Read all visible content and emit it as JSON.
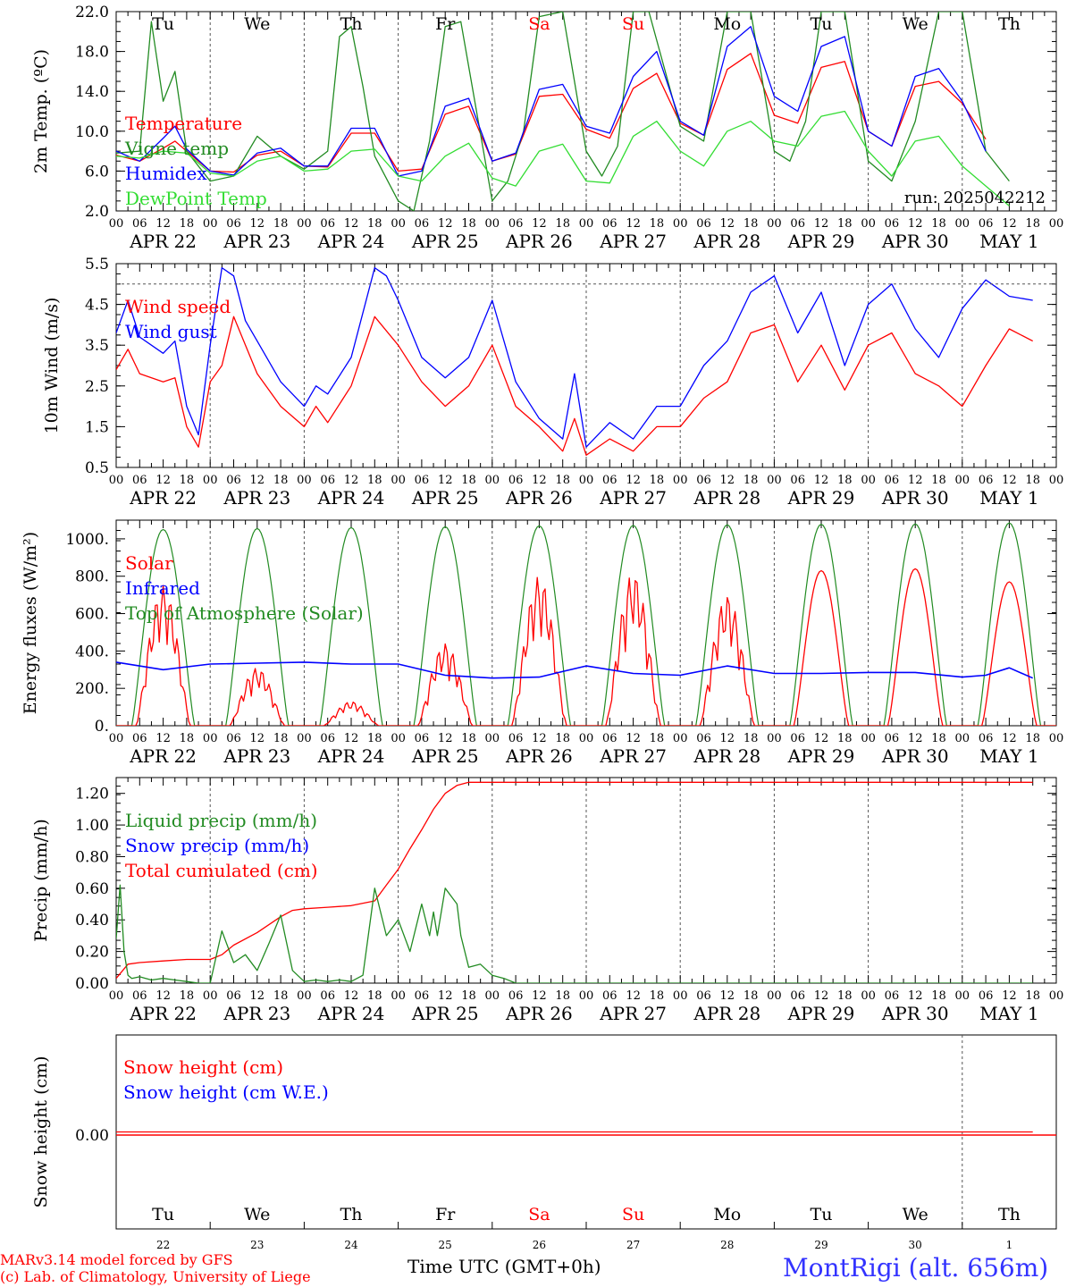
{
  "colors": {
    "temperature": "#ff0000",
    "vigne": "#228b22",
    "humidex": "#0000ff",
    "dewpoint": "#33dd33",
    "weekend": "#ff0000",
    "station": "#3333ff"
  },
  "days": [
    {
      "name": "Tu",
      "date": "APR 22",
      "num": "22",
      "weekend": false
    },
    {
      "name": "We",
      "date": "APR 23",
      "num": "23",
      "weekend": false
    },
    {
      "name": "Th",
      "date": "APR 24",
      "num": "24",
      "weekend": false
    },
    {
      "name": "Fr",
      "date": "APR 25",
      "num": "25",
      "weekend": false
    },
    {
      "name": "Sa",
      "date": "APR 26",
      "num": "26",
      "weekend": true
    },
    {
      "name": "Su",
      "date": "APR 27",
      "num": "27",
      "weekend": true
    },
    {
      "name": "Mo",
      "date": "APR 28",
      "num": "28",
      "weekend": false
    },
    {
      "name": "Tu",
      "date": "APR 29",
      "num": "29",
      "weekend": false
    },
    {
      "name": "We",
      "date": "APR 30",
      "num": "30",
      "weekend": false
    },
    {
      "name": "Th",
      "date": "MAY  1",
      "num": "1",
      "weekend": false
    }
  ],
  "hour_labels": [
    "00",
    "06",
    "12",
    "18"
  ],
  "footer": {
    "credit1": "MARv3.14 model forced by GFS",
    "credit2": "(c) Lab. of Climatology, University of Liege",
    "time_label": "Time UTC (GMT+0h)",
    "station": "MontRigi (alt. 656m)"
  },
  "chart_data": [
    {
      "id": "temp",
      "type": "line",
      "ylabel": "2m Temp. (ºC)",
      "ylim": [
        2,
        22
      ],
      "yticks": [
        "2.0",
        "6.0",
        "10.0",
        "14.0",
        "18.0",
        "22.0"
      ],
      "annotation": "run: 2025042212",
      "legend": [
        "Temperature",
        "Vigne temp",
        "Humidex",
        "DewPoint Temp"
      ],
      "series": [
        {
          "name": "Temperature",
          "color_key": "temperature",
          "x": [
            0,
            6,
            12,
            15,
            18,
            24,
            30,
            36,
            42,
            48,
            54,
            60,
            66,
            72,
            78,
            84,
            90,
            96,
            102,
            108,
            114,
            120,
            126,
            132,
            138,
            144,
            150,
            156,
            162,
            168,
            174,
            180,
            186,
            192,
            198,
            204,
            210,
            216,
            222,
            228,
            234
          ],
          "y": [
            7.6,
            7.0,
            8.3,
            9.0,
            8.0,
            6.0,
            5.9,
            7.6,
            8.0,
            6.5,
            6.4,
            9.8,
            9.8,
            6.0,
            6.2,
            11.7,
            12.5,
            7.0,
            7.7,
            13.5,
            13.7,
            10.2,
            9.3,
            14.3,
            15.8,
            10.8,
            9.6,
            16.2,
            17.8,
            11.6,
            10.8,
            16.4,
            17.0,
            10.0,
            8.5,
            14.5,
            15.0,
            12.8,
            9.2,
            null,
            null
          ]
        },
        {
          "name": "Vigne temp",
          "color_key": "vigne",
          "x": [
            0,
            6,
            9,
            12,
            15,
            18,
            24,
            30,
            36,
            42,
            48,
            54,
            57,
            60,
            63,
            66,
            72,
            76,
            80,
            84,
            88,
            96,
            100,
            104,
            108,
            114,
            120,
            124,
            128,
            132,
            136,
            144,
            150,
            156,
            158,
            162,
            168,
            172,
            176,
            180,
            186,
            192,
            198,
            204,
            210,
            216,
            222,
            228,
            234
          ],
          "y": [
            7.8,
            8.0,
            21.0,
            13.0,
            16.0,
            8.0,
            5.0,
            5.5,
            9.5,
            7.5,
            6.2,
            8.0,
            19.5,
            20.5,
            14.5,
            7.5,
            3.0,
            2.0,
            9.0,
            20.5,
            21.0,
            3.0,
            5.0,
            10.0,
            21.5,
            22.0,
            8.0,
            5.5,
            8.5,
            22.0,
            22.0,
            10.5,
            9.0,
            22.0,
            22.0,
            22.0,
            8.0,
            7.0,
            11.0,
            22.0,
            22.0,
            7.0,
            5.0,
            11.0,
            22.0,
            22.0,
            8.0,
            5.0,
            null
          ]
        },
        {
          "name": "Humidex",
          "color_key": "humidex",
          "x": [
            0,
            6,
            12,
            15,
            18,
            24,
            30,
            36,
            42,
            48,
            54,
            60,
            66,
            72,
            78,
            84,
            90,
            96,
            102,
            108,
            114,
            120,
            126,
            132,
            138,
            144,
            150,
            156,
            162,
            168,
            174,
            180,
            186,
            192,
            198,
            204,
            210,
            216,
            222,
            228,
            234
          ],
          "y": [
            8.0,
            7.0,
            9.3,
            10.5,
            8.2,
            6.0,
            5.6,
            7.8,
            8.3,
            6.5,
            6.5,
            10.3,
            10.3,
            5.5,
            6.0,
            12.5,
            13.3,
            7.0,
            7.8,
            14.2,
            14.7,
            10.5,
            9.8,
            15.5,
            18.0,
            11.0,
            9.6,
            18.5,
            20.5,
            13.5,
            12.0,
            18.5,
            19.5,
            10.0,
            8.5,
            15.5,
            16.3,
            13.0,
            8.0,
            null,
            null
          ]
        },
        {
          "name": "DewPoint Temp",
          "color_key": "dewpoint",
          "x": [
            0,
            6,
            12,
            18,
            24,
            30,
            36,
            42,
            48,
            54,
            60,
            66,
            72,
            78,
            84,
            90,
            96,
            102,
            108,
            114,
            120,
            126,
            132,
            138,
            144,
            150,
            156,
            162,
            168,
            174,
            180,
            186,
            192,
            198,
            204,
            210,
            216,
            222,
            228,
            234
          ],
          "y": [
            7.5,
            7.3,
            8.0,
            7.8,
            5.8,
            5.5,
            7.0,
            7.5,
            6.0,
            6.2,
            8.0,
            8.2,
            5.5,
            5.0,
            7.5,
            8.8,
            5.3,
            4.5,
            8.0,
            8.7,
            5.0,
            4.8,
            9.5,
            11.0,
            8.0,
            6.5,
            10.0,
            11.0,
            9.0,
            8.5,
            11.5,
            12.0,
            8.0,
            5.5,
            9.0,
            9.5,
            6.5,
            4.5,
            2.5,
            null
          ]
        }
      ]
    },
    {
      "id": "wind",
      "type": "line",
      "ylabel": "10m Wind (m/s)",
      "ylim": [
        0.5,
        5.5
      ],
      "yticks": [
        "0.5",
        "1.5",
        "2.5",
        "3.5",
        "4.5",
        "5.5"
      ],
      "reference_line": 5.0,
      "legend": [
        "Wind speed",
        "Wind gust"
      ],
      "series": [
        {
          "name": "Wind speed",
          "color_key": "temperature",
          "x": [
            0,
            3,
            6,
            12,
            15,
            18,
            21,
            24,
            27,
            30,
            36,
            42,
            48,
            51,
            54,
            60,
            66,
            72,
            78,
            84,
            90,
            96,
            102,
            108,
            114,
            117,
            120,
            126,
            132,
            138,
            144,
            150,
            156,
            162,
            168,
            174,
            180,
            186,
            192,
            198,
            204,
            210,
            216,
            222,
            228,
            234
          ],
          "y": [
            2.9,
            3.4,
            2.8,
            2.6,
            2.7,
            1.5,
            1.0,
            2.6,
            3.0,
            4.2,
            2.8,
            2.0,
            1.5,
            2.0,
            1.6,
            2.5,
            4.2,
            3.5,
            2.6,
            2.0,
            2.5,
            3.5,
            2.0,
            1.5,
            0.9,
            1.7,
            0.8,
            1.2,
            0.9,
            1.5,
            1.5,
            2.2,
            2.6,
            3.8,
            4.0,
            2.6,
            3.5,
            2.4,
            3.5,
            3.8,
            2.8,
            2.5,
            2.0,
            3.0,
            3.9,
            3.6
          ]
        },
        {
          "name": "Wind gust",
          "color_key": "humidex",
          "x": [
            0,
            3,
            6,
            12,
            15,
            18,
            21,
            24,
            27,
            30,
            33,
            36,
            42,
            48,
            51,
            54,
            60,
            66,
            69,
            72,
            78,
            84,
            90,
            96,
            102,
            108,
            114,
            117,
            120,
            126,
            132,
            138,
            144,
            150,
            156,
            162,
            168,
            174,
            180,
            186,
            192,
            198,
            204,
            210,
            216,
            222,
            228,
            234
          ],
          "y": [
            3.8,
            4.6,
            3.7,
            3.3,
            3.6,
            2.0,
            1.3,
            3.5,
            5.4,
            5.2,
            4.1,
            3.6,
            2.6,
            2.0,
            2.5,
            2.3,
            3.2,
            5.4,
            5.2,
            4.6,
            3.2,
            2.7,
            3.2,
            4.6,
            2.6,
            1.7,
            1.2,
            2.8,
            1.0,
            1.6,
            1.2,
            2.0,
            2.0,
            3.0,
            3.6,
            4.8,
            5.2,
            3.8,
            4.8,
            3.0,
            4.5,
            5.0,
            3.9,
            3.2,
            4.4,
            5.1,
            4.7,
            4.6
          ]
        }
      ]
    },
    {
      "id": "flux",
      "type": "line",
      "ylabel": "Energy fluxes (W/m²)",
      "ylim": [
        0,
        1100
      ],
      "yticks": [
        "0.",
        "200.",
        "400.",
        "600.",
        "800.",
        "1000."
      ],
      "legend": [
        "Solar",
        "Infrared",
        "Top of Atmosphere (Solar)"
      ],
      "toa_peaks": [
        1050,
        1055,
        1060,
        1065,
        1070,
        1072,
        1075,
        1078,
        1080,
        1085
      ],
      "solar_peaks": [
        750,
        310,
        130,
        440,
        800,
        820,
        700,
        830,
        840,
        770
      ],
      "series": [
        {
          "name": "Infrared",
          "color_key": "humidex",
          "x": [
            0,
            12,
            24,
            36,
            48,
            60,
            72,
            84,
            96,
            108,
            120,
            132,
            144,
            156,
            168,
            180,
            192,
            204,
            216,
            222,
            228,
            234
          ],
          "y": [
            340,
            300,
            330,
            335,
            340,
            330,
            330,
            270,
            255,
            260,
            320,
            280,
            270,
            320,
            280,
            280,
            285,
            285,
            260,
            270,
            310,
            255
          ]
        }
      ]
    },
    {
      "id": "precip",
      "type": "line",
      "ylabel": "Precip (mm/h)",
      "ylim": [
        0,
        1.3
      ],
      "yticks": [
        "0.00",
        "0.20",
        "0.40",
        "0.60",
        "0.80",
        "1.00",
        "1.20"
      ],
      "legend": [
        "Liquid precip (mm/h)",
        "Snow precip (mm/h)",
        "Total cumulated (cm)"
      ],
      "series": [
        {
          "name": "Total cumulated (cm)",
          "color_key": "temperature",
          "x": [
            0,
            3,
            6,
            12,
            18,
            24,
            27,
            30,
            36,
            42,
            45,
            48,
            54,
            60,
            66,
            69,
            72,
            75,
            78,
            81,
            84,
            87,
            90,
            96,
            102,
            108,
            120,
            180,
            234
          ],
          "y": [
            0.03,
            0.12,
            0.13,
            0.14,
            0.15,
            0.15,
            0.18,
            0.24,
            0.32,
            0.42,
            0.46,
            0.47,
            0.48,
            0.49,
            0.52,
            0.62,
            0.72,
            0.85,
            0.97,
            1.1,
            1.2,
            1.25,
            1.27,
            1.27,
            1.27,
            1.27,
            1.27,
            1.27,
            1.27
          ]
        },
        {
          "name": "Liquid precip (mm/h)",
          "color_key": "vigne",
          "x": [
            0,
            1,
            2,
            3,
            4,
            6,
            9,
            12,
            15,
            18,
            21,
            24,
            27,
            30,
            33,
            36,
            39,
            42,
            45,
            48,
            51,
            54,
            57,
            60,
            63,
            66,
            69,
            72,
            75,
            78,
            80,
            81,
            82,
            84,
            87,
            88,
            90,
            93,
            96,
            99,
            102,
            108,
            234
          ],
          "y": [
            0.28,
            0.62,
            0.2,
            0.05,
            0.03,
            0.04,
            0.02,
            0.03,
            0.02,
            0.01,
            0.0,
            0.0,
            0.33,
            0.13,
            0.18,
            0.08,
            0.25,
            0.43,
            0.08,
            0.01,
            0.02,
            0.01,
            0.02,
            0.01,
            0.05,
            0.6,
            0.3,
            0.4,
            0.2,
            0.5,
            0.3,
            0.45,
            0.3,
            0.6,
            0.5,
            0.3,
            0.1,
            0.12,
            0.05,
            0.03,
            0.0,
            0.0,
            0.0
          ]
        }
      ]
    },
    {
      "id": "snow",
      "type": "line",
      "ylabel": "Snow height (cm)",
      "yticks": [
        "0.00"
      ],
      "legend": [
        "Snow height (cm)",
        "Snow height (cm W.E.)"
      ],
      "series": [
        {
          "name": "Snow height (cm)",
          "color_key": "temperature",
          "x": [
            0,
            234
          ],
          "y": [
            0,
            0
          ]
        }
      ]
    }
  ]
}
